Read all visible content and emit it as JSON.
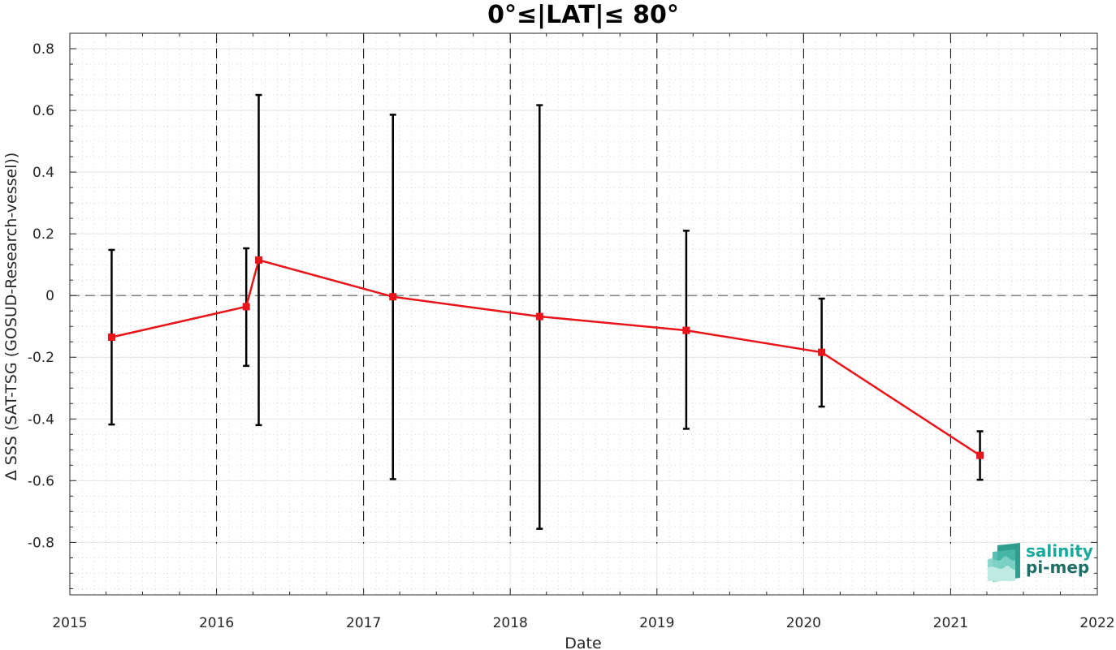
{
  "chart_data": {
    "type": "line",
    "title": "0°≤|LAT|≤ 80°",
    "xlabel": "Date",
    "ylabel": "Δ SSS (SAT-TSG (GOSUD-Research-vessel))",
    "x_ticks": [
      "2015",
      "2016",
      "2017",
      "2018",
      "2019",
      "2020",
      "2021",
      "2022"
    ],
    "y_ticks": [
      "-0.8",
      "-0.6",
      "-0.4",
      "-0.2",
      "0",
      "0.2",
      "0.4",
      "0.6",
      "0.8"
    ],
    "xlim": [
      "2015-01-01",
      "2022-01-01"
    ],
    "ylim": [
      -0.97,
      0.85
    ],
    "grid": true,
    "reference_line_y": 0,
    "year_boundary_lines": [
      "2016",
      "2017",
      "2018",
      "2019",
      "2020",
      "2021"
    ],
    "series": [
      {
        "color": "#e8141a",
        "marker": "square",
        "points": [
          {
            "x": "2015-04-15",
            "y": -0.135,
            "err_low": -0.418,
            "err_high": 0.148
          },
          {
            "x": "2016-03-15",
            "y": -0.036,
            "err_low": -0.228,
            "err_high": 0.153
          },
          {
            "x": "2016-04-15",
            "y": 0.115,
            "err_low": -0.42,
            "err_high": 0.65
          },
          {
            "x": "2017-03-15",
            "y": -0.004,
            "err_low": -0.595,
            "err_high": 0.586
          },
          {
            "x": "2018-03-15",
            "y": -0.068,
            "err_low": -0.756,
            "err_high": 0.617
          },
          {
            "x": "2019-03-15",
            "y": -0.113,
            "err_low": -0.432,
            "err_high": 0.21
          },
          {
            "x": "2020-02-15",
            "y": -0.184,
            "err_low": -0.36,
            "err_high": -0.01
          },
          {
            "x": "2021-03-15",
            "y": -0.518,
            "err_low": -0.597,
            "err_high": -0.44
          }
        ]
      }
    ],
    "errorbar_color": "#000000"
  },
  "logo": {
    "line1": "salinity",
    "line2": "pi-mep",
    "color1": "#19a99b",
    "color2": "#1f6f66"
  }
}
